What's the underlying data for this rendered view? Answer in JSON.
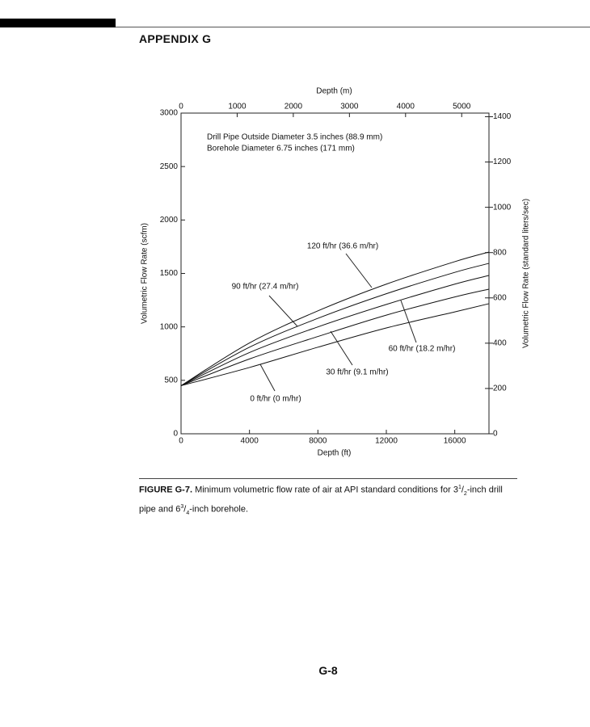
{
  "header": {
    "title": "APPENDIX G"
  },
  "chart_data": {
    "type": "line",
    "top_axis_label": "Depth (m)",
    "xlabel": "Depth (ft)",
    "ylabel": "Volumetric Flow Rate (scfm)",
    "y2label": "Volumetric Flow Rate (standard liters/sec)",
    "annotations": [
      "Drill Pipe Outside Diameter 3.5 inches (88.9 mm)",
      "Borehole Diameter 6.75 inches (171 mm)"
    ],
    "x": [
      0,
      4000,
      8000,
      12000,
      16000,
      18000
    ],
    "xlim": [
      0,
      18000
    ],
    "xticks": [
      0,
      4000,
      8000,
      12000,
      16000
    ],
    "x2lim": [
      0,
      5486
    ],
    "x2ticks": [
      0,
      1000,
      2000,
      3000,
      4000,
      5000
    ],
    "ylim": [
      0,
      3000
    ],
    "yticks": [
      0,
      500,
      1000,
      1500,
      2000,
      2500,
      3000
    ],
    "y2lim": [
      0,
      1416
    ],
    "y2ticks": [
      0,
      200,
      400,
      600,
      800,
      1000,
      1200,
      1400
    ],
    "series": [
      {
        "name": "0 ft/hr (0 m/hr)",
        "color": "#111111",
        "values": [
          450,
          620,
          810,
          990,
          1140,
          1217
        ]
      },
      {
        "name": "30 ft/hr (9.1 m/hr)",
        "color": "#111111",
        "values": [
          450,
          700,
          910,
          1110,
          1280,
          1353
        ]
      },
      {
        "name": "60 ft/hr (18.2 m/hr)",
        "color": "#111111",
        "values": [
          450,
          760,
          1000,
          1210,
          1400,
          1481
        ]
      },
      {
        "name": "90 ft/hr (27.4 m/hr)",
        "color": "#111111",
        "values": [
          450,
          810,
          1080,
          1310,
          1510,
          1594
        ]
      },
      {
        "name": "120 ft/hr (36.6 m/hr)",
        "color": "#111111",
        "values": [
          450,
          850,
          1150,
          1400,
          1610,
          1700
        ]
      }
    ]
  },
  "caption": {
    "label": "FIGURE G-7.",
    "parts": [
      "Minimum volumetric flow rate of air at API standard conditions for 3",
      "1",
      "/",
      "2",
      "-inch drill pipe and 6",
      "3",
      "/",
      "4",
      "-inch borehole."
    ]
  },
  "footer": {
    "page": "G-8"
  }
}
